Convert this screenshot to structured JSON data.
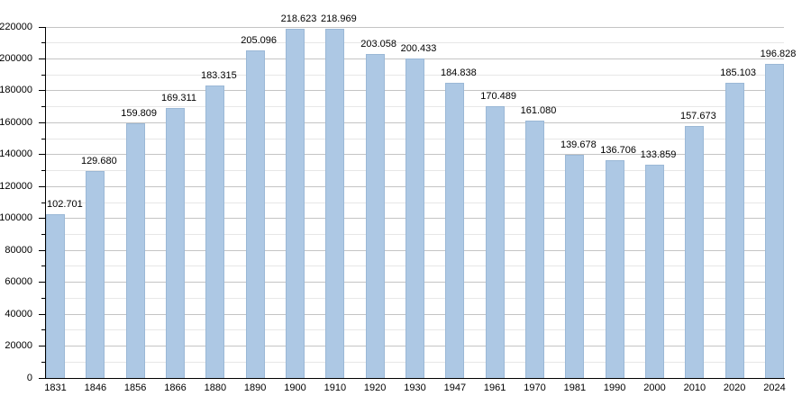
{
  "chart_data": {
    "type": "bar",
    "title": "",
    "xlabel": "",
    "ylabel": "",
    "categories": [
      "1831",
      "1846",
      "1856",
      "1866",
      "1880",
      "1890",
      "1900",
      "1910",
      "1920",
      "1930",
      "1947",
      "1961",
      "1970",
      "1981",
      "1990",
      "2000",
      "2010",
      "2020",
      "2024"
    ],
    "values": [
      102701,
      129680,
      159809,
      169311,
      183315,
      205096,
      218623,
      218969,
      203058,
      200433,
      184838,
      170489,
      161080,
      139678,
      136706,
      133859,
      157673,
      185103,
      196828
    ],
    "value_labels": [
      "102.701",
      "129.680",
      "159.809",
      "169.311",
      "183.315",
      "205.096",
      "218.623",
      "218.969",
      "203.058",
      "200.433",
      "184.838",
      "170.489",
      "161.080",
      "139.678",
      "136.706",
      "133.859",
      "157.673",
      "185.103",
      "196.828"
    ],
    "ylim": [
      0,
      220000
    ],
    "y_major_step": 20000,
    "y_minor_step": 10000,
    "y_tick_labels": [
      "0",
      "20000",
      "40000",
      "60000",
      "80000",
      "100000",
      "120000",
      "140000",
      "160000",
      "180000",
      "200000",
      "220000"
    ],
    "grid": "on",
    "legend": "none"
  },
  "colors": {
    "bar_fill": "#adc8e4",
    "bar_border": "#9bb8d6",
    "grid_major": "#c4c4c4",
    "grid_minor": "#e7e7e7",
    "axis": "#000000",
    "text": "#000000",
    "background": "#ffffff"
  }
}
